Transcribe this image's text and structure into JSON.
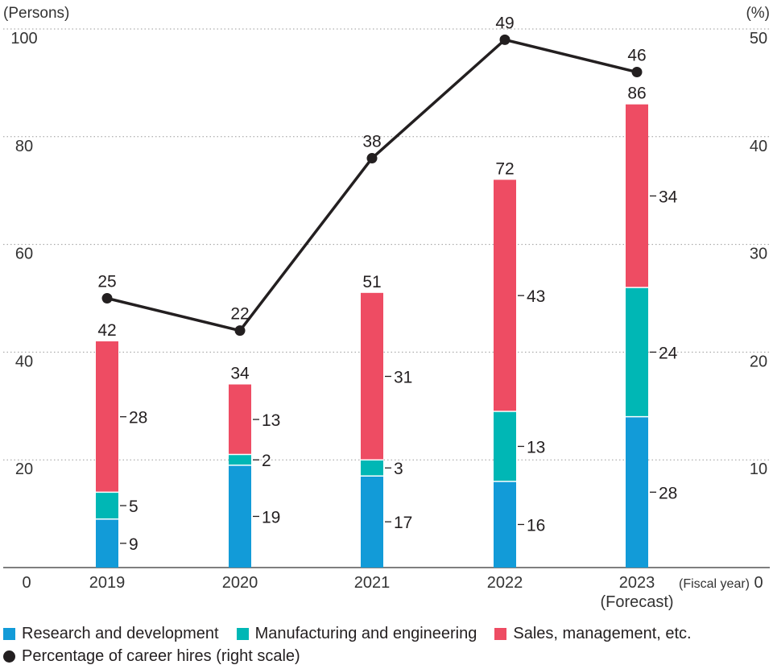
{
  "chart_data": {
    "type": "bar",
    "stacked": true,
    "categories": [
      "2019",
      "2020",
      "2021",
      "2022",
      "2023"
    ],
    "category_sublabels": [
      "",
      "",
      "",
      "",
      "(Forecast)"
    ],
    "series": [
      {
        "name": "Research and development",
        "values": [
          9,
          19,
          17,
          16,
          28
        ],
        "color": "#129bd8"
      },
      {
        "name": "Manufacturing and engineering",
        "values": [
          5,
          2,
          3,
          13,
          24
        ],
        "color": "#00b7b5"
      },
      {
        "name": "Sales, management, etc.",
        "values": [
          28,
          13,
          31,
          43,
          34
        ],
        "color": "#ee4c63"
      }
    ],
    "totals": [
      42,
      34,
      51,
      72,
      86
    ],
    "line_series": {
      "name": "Percentage of career hires (right scale)",
      "values": [
        25,
        22,
        38,
        49,
        46
      ],
      "color": "#231f20",
      "axis": "right"
    },
    "ylim_left": [
      0,
      100
    ],
    "ylim_right": [
      0,
      50
    ],
    "left_ticks": [
      0,
      20,
      40,
      60,
      80,
      100
    ],
    "right_ticks": [
      0,
      10,
      20,
      30,
      40,
      50
    ],
    "left_unit_label": "(Persons)",
    "right_unit_label": "(%)",
    "xaxis_label": "(Fiscal year)",
    "grid": true,
    "legend_position": "bottom"
  }
}
